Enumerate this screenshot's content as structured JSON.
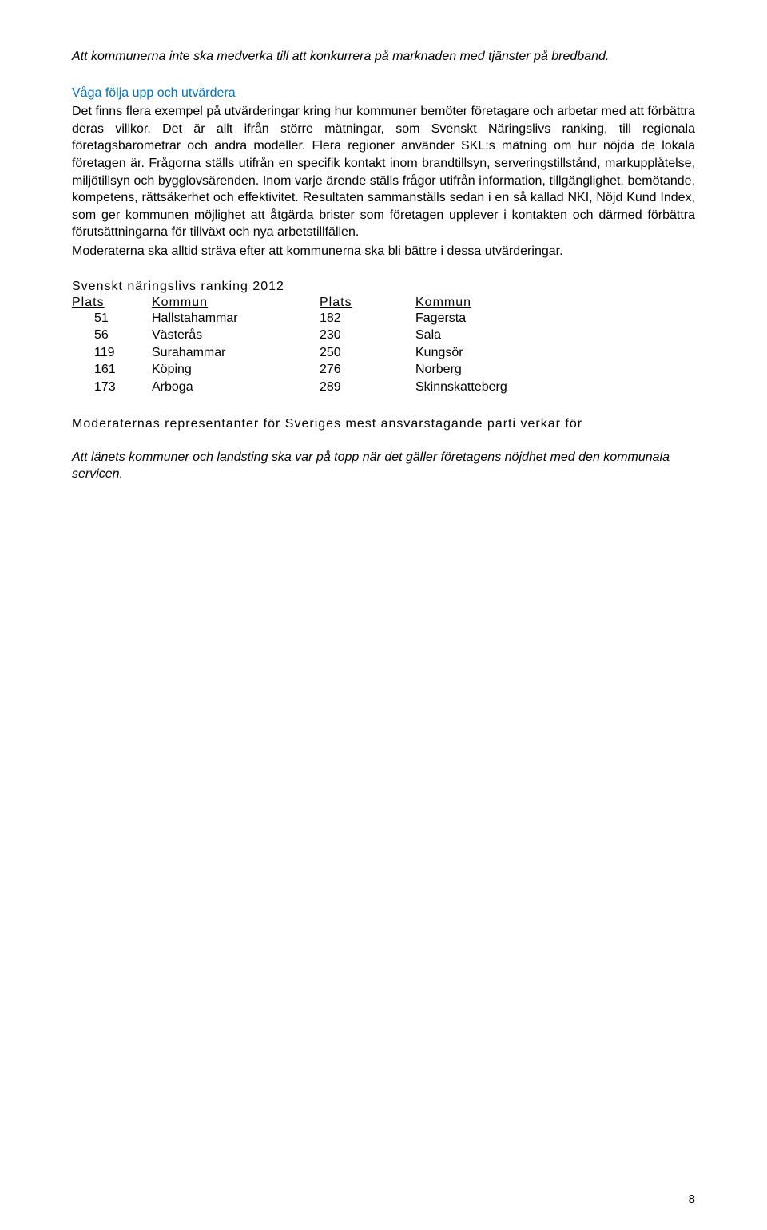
{
  "intro_italic": "Att kommunerna inte ska medverka till att konkurrera på marknaden med tjänster på bredband.",
  "blue_heading": "Våga följa upp och utvärdera",
  "paragraph1": "Det finns flera exempel på utvärderingar kring hur kommuner bemöter företagare och arbetar med att förbättra deras villkor. Det är allt ifrån större mätningar, som Svenskt Näringslivs ranking, till regionala företagsbarometrar och andra modeller. Flera regioner använder SKL:s mätning om hur nöjda de lokala företagen är. Frågorna ställs utifrån en specifik kontakt inom brandtillsyn, serveringstillstånd, markupplåtelse, miljötillsyn och bygglovsärenden. Inom varje ärende ställs frågor utifrån information, tillgänglighet, bemötande, kompetens, rättsäkerhet och effektivitet. Resultaten sammanställs sedan i en så kallad NKI, Nöjd Kund Index, som ger kommunen möjlighet att åtgärda brister som företagen upplever i kontakten och därmed förbättra förutsättningarna för tillväxt och nya arbetstillfällen.",
  "paragraph2": "Moderaterna ska alltid sträva efter att kommunerna ska bli bättre i dessa utvärderingar.",
  "ranking_title": "Svenskt näringslivs ranking 2012",
  "table": {
    "headers": {
      "plats": "Plats",
      "kommun": "Kommun"
    },
    "rows": [
      {
        "p1": "51",
        "k1": "Hallstahammar",
        "p2": "182",
        "k2": "Fagersta"
      },
      {
        "p1": "56",
        "k1": "Västerås",
        "p2": "230",
        "k2": "Sala"
      },
      {
        "p1": "119",
        "k1": "Surahammar",
        "p2": "250",
        "k2": "Kungsör"
      },
      {
        "p1": "161",
        "k1": "Köping",
        "p2": "276",
        "k2": "Norberg"
      },
      {
        "p1": "173",
        "k1": "Arboga",
        "p2": "289",
        "k2": "Skinnskatteberg"
      }
    ]
  },
  "rep_title": "Moderaternas representanter för Sveriges mest ansvarstagande parti verkar för",
  "closing_italic": "Att länets kommuner och landsting ska var på topp när det gäller företagens nöjdhet med den kommunala servicen.",
  "page_number": "8"
}
